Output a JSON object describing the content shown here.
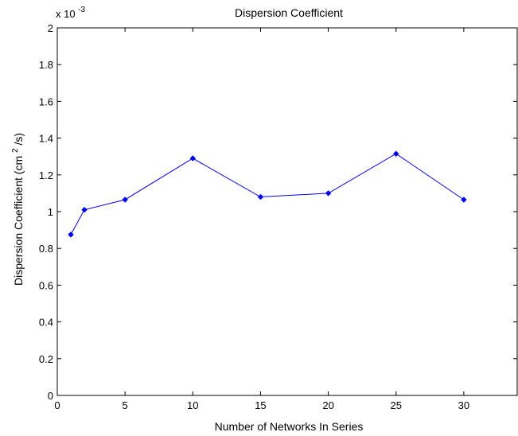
{
  "chart_data": {
    "type": "line",
    "title": "Dispersion Coefficient",
    "xlabel": "Number of Networks In Series",
    "ylabel_main": "Dispersion Coefficient (cm",
    "ylabel_sup": "2",
    "ylabel_tail": "/s)",
    "y_multiplier": "x 10",
    "y_multiplier_exp": "-3",
    "xlim": [
      0,
      34
    ],
    "ylim": [
      0,
      2
    ],
    "x_ticks": [
      0,
      5,
      10,
      15,
      20,
      25,
      30
    ],
    "y_ticks": [
      0,
      0.2,
      0.4,
      0.6,
      0.8,
      1,
      1.2,
      1.4,
      1.6,
      1.8,
      2
    ],
    "y_tick_labels": [
      "0",
      "0.2",
      "0.4",
      "0.6",
      "0.8",
      "1",
      "1.2",
      "1.4",
      "1.6",
      "1.8",
      "2"
    ],
    "grid": false,
    "series": [
      {
        "color": "#0000ff",
        "marker": "diamond",
        "x": [
          1,
          2,
          5,
          10,
          15,
          20,
          25,
          30
        ],
        "values": [
          0.875,
          1.01,
          1.065,
          1.29,
          1.08,
          1.1,
          1.315,
          1.065
        ]
      }
    ]
  }
}
